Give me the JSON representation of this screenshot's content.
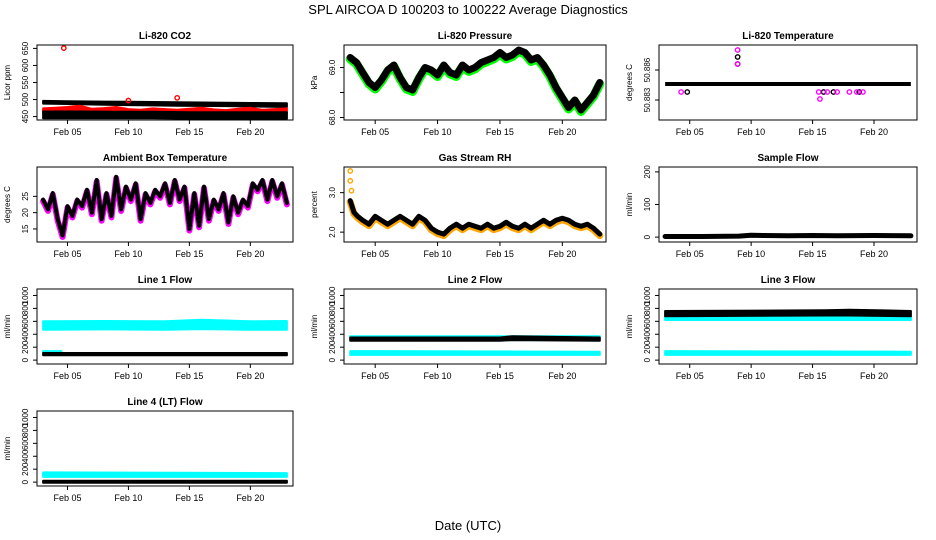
{
  "page": {
    "title": "SPL   AIRCOA D   100203 to 100222   Average Diagnostics",
    "footer": "Date (UTC)"
  },
  "colors": {
    "black": "#000000",
    "red": "#ff0000",
    "magenta": "#ff00ff",
    "green": "#00ff00",
    "orange": "#ffa500",
    "cyan": "#00ffff"
  },
  "chart_data": [
    {
      "id": "co2",
      "type": "scatter",
      "title": "Li-820 CO2",
      "ylabel": "Licor ppm",
      "xlim": [
        2.5,
        23.5
      ],
      "ylim": [
        440,
        660
      ],
      "xticks": [
        5,
        10,
        15,
        20
      ],
      "xticklabels": [
        "Feb 05",
        "Feb 10",
        "Feb 15",
        "Feb 20"
      ],
      "yticks": [
        450,
        500,
        550,
        600,
        650
      ],
      "yticklabels": [
        "450",
        "500",
        "550",
        "600",
        "650"
      ],
      "series": [
        {
          "name": "upper",
          "color": "#000000",
          "style": "band",
          "x": [
            3,
            5,
            8,
            11,
            14,
            17,
            20,
            23
          ],
          "lo": [
            488,
            487,
            485,
            483,
            482,
            481,
            480,
            478
          ],
          "hi": [
            496,
            495,
            494,
            493,
            492,
            491,
            490,
            489
          ]
        },
        {
          "name": "red",
          "color": "#ff0000",
          "style": "band",
          "x": [
            3,
            4,
            5,
            6,
            7,
            8,
            9,
            10,
            11,
            12,
            13,
            14,
            15,
            16,
            17,
            18,
            19,
            20,
            21,
            22,
            23
          ],
          "lo": [
            462,
            462,
            461,
            461,
            460,
            460,
            460,
            460,
            460,
            459,
            459,
            459,
            459,
            459,
            458,
            458,
            458,
            458,
            458,
            458,
            458
          ],
          "hi": [
            474,
            476,
            478,
            482,
            473,
            475,
            478,
            472,
            470,
            474,
            472,
            470,
            473,
            476,
            471,
            469,
            473,
            476,
            470,
            472,
            474
          ]
        },
        {
          "name": "lower",
          "color": "#000000",
          "style": "band",
          "x": [
            3,
            6,
            9,
            12,
            15,
            18,
            21,
            23
          ],
          "lo": [
            445,
            445,
            445,
            445,
            444,
            444,
            444,
            444
          ],
          "hi": [
            465,
            465,
            464,
            464,
            463,
            463,
            463,
            463
          ]
        },
        {
          "name": "outliers",
          "color": "#ff0000",
          "style": "points",
          "x": [
            4.7,
            10.0,
            14.0
          ],
          "y": [
            651,
            497,
            505
          ]
        }
      ]
    },
    {
      "id": "pressure",
      "type": "line",
      "title": "Li-820 Pressure",
      "ylabel": "kPa",
      "xlim": [
        2.5,
        23.5
      ],
      "ylim": [
        67.95,
        69.45
      ],
      "xticks": [
        5,
        10,
        15,
        20
      ],
      "xticklabels": [
        "Feb 05",
        "Feb 10",
        "Feb 15",
        "Feb 20"
      ],
      "yticks": [
        68.0,
        68.5,
        69.0
      ],
      "yticklabels": [
        "68.0",
        "",
        "69.0"
      ],
      "series": [
        {
          "name": "pressure",
          "color": "#000000",
          "halo": "#00ff00",
          "width": 7,
          "x": [
            3,
            3.5,
            4,
            4.5,
            5,
            5.5,
            6,
            6.5,
            7,
            7.5,
            8,
            8.5,
            9,
            9.5,
            10,
            10.5,
            11,
            11.5,
            12,
            12.5,
            13,
            13.5,
            14,
            14.5,
            15,
            15.5,
            16,
            16.5,
            17,
            17.5,
            18,
            18.5,
            19,
            19.5,
            20,
            20.5,
            21,
            21.5,
            22,
            22.5,
            23
          ],
          "y": [
            69.2,
            69.1,
            68.9,
            68.7,
            68.6,
            68.75,
            68.95,
            69.05,
            68.8,
            68.6,
            68.55,
            68.8,
            69.0,
            68.95,
            68.85,
            69.05,
            68.9,
            68.85,
            69.05,
            68.95,
            69.0,
            69.1,
            69.15,
            69.2,
            69.3,
            69.2,
            69.25,
            69.35,
            69.3,
            69.15,
            69.2,
            69.05,
            68.85,
            68.6,
            68.4,
            68.2,
            68.35,
            68.15,
            68.3,
            68.45,
            68.7
          ]
        }
      ]
    },
    {
      "id": "temperature",
      "type": "scatter",
      "title": "Li-820 Temperature",
      "ylabel": "degrees C",
      "xlim": [
        2.5,
        23.5
      ],
      "ylim": [
        50.881,
        50.8885
      ],
      "xticks": [
        5,
        10,
        15,
        20
      ],
      "xticklabels": [
        "Feb 05",
        "Feb 10",
        "Feb 15",
        "Feb 20"
      ],
      "yticks": [
        50.883,
        50.886
      ],
      "yticklabels": [
        "50.883",
        "50.886"
      ],
      "series": [
        {
          "name": "main",
          "color": "#000000",
          "style": "hline",
          "x": [
            3,
            23
          ],
          "y": [
            50.8846,
            50.8846
          ]
        },
        {
          "name": "low-black",
          "color": "#000000",
          "style": "points",
          "x": [
            4.8,
            15.9,
            16.7,
            18.8
          ],
          "y": [
            50.8838,
            50.8838,
            50.8838,
            50.8838
          ]
        },
        {
          "name": "high-black",
          "color": "#000000",
          "style": "points",
          "x": [
            8.9,
            8.9
          ],
          "y": [
            50.8873,
            50.8866
          ]
        },
        {
          "name": "magenta",
          "color": "#ff00ff",
          "style": "points",
          "x": [
            4.3,
            8.9,
            8.9,
            15.5,
            15.6,
            16.2,
            17.0,
            18.0,
            18.6,
            19.1
          ],
          "y": [
            50.8838,
            50.888,
            50.8866,
            50.8838,
            50.8831,
            50.8838,
            50.8838,
            50.8838,
            50.8838,
            50.8838
          ]
        }
      ]
    },
    {
      "id": "ambient",
      "type": "line",
      "title": "Ambient Box Temperature",
      "ylabel": "degrees C",
      "xlim": [
        2.5,
        23.5
      ],
      "ylim": [
        11,
        34
      ],
      "xticks": [
        5,
        10,
        15,
        20
      ],
      "xticklabels": [
        "Feb 05",
        "Feb 10",
        "Feb 15",
        "Feb 20"
      ],
      "yticks": [
        15,
        20,
        25
      ],
      "yticklabels": [
        "15",
        "20",
        "25"
      ],
      "series": [
        {
          "name": "ambient",
          "color": "#000000",
          "halo": "#ff00ff",
          "width": 4,
          "x": [
            3,
            3.4,
            3.8,
            4.2,
            4.6,
            5.0,
            5.4,
            5.8,
            6.2,
            6.6,
            7.0,
            7.4,
            7.8,
            8.2,
            8.6,
            9.0,
            9.4,
            9.8,
            10.2,
            10.6,
            11.0,
            11.4,
            11.8,
            12.2,
            12.6,
            13.0,
            13.4,
            13.8,
            14.2,
            14.6,
            15.0,
            15.4,
            15.8,
            16.2,
            16.6,
            17.0,
            17.4,
            17.8,
            18.2,
            18.6,
            19.0,
            19.4,
            19.8,
            20.2,
            20.6,
            21.0,
            21.4,
            21.8,
            22.2,
            22.6,
            23.0
          ],
          "y": [
            24,
            21,
            26,
            18,
            13,
            22,
            19,
            24,
            22,
            27,
            20,
            30,
            18,
            26,
            19,
            31,
            21,
            28,
            24,
            29,
            18,
            26,
            23,
            27,
            25,
            29,
            23,
            30,
            24,
            28,
            15,
            26,
            16,
            28,
            18,
            24,
            21,
            26,
            17,
            25,
            20,
            24,
            22,
            29,
            27,
            30,
            24,
            30,
            25,
            29,
            23
          ]
        }
      ]
    },
    {
      "id": "rh",
      "type": "line",
      "title": "Gas Stream RH",
      "ylabel": "percent",
      "xlim": [
        2.5,
        23.5
      ],
      "ylim": [
        1.75,
        3.65
      ],
      "xticks": [
        5,
        10,
        15,
        20
      ],
      "xticklabels": [
        "Feb 05",
        "Feb 10",
        "Feb 15",
        "Feb 20"
      ],
      "yticks": [
        2.0,
        2.5,
        3.0
      ],
      "yticklabels": [
        "2.0",
        "",
        "3.0"
      ],
      "series": [
        {
          "name": "rh",
          "color": "#000000",
          "halo": "#ffa500",
          "width": 5,
          "x": [
            3,
            3.3,
            3.6,
            4.0,
            4.5,
            5.0,
            5.5,
            6.0,
            6.5,
            7.0,
            7.5,
            8.0,
            8.5,
            9.0,
            9.5,
            10.0,
            10.5,
            11.0,
            11.5,
            12.0,
            12.5,
            13.0,
            13.5,
            14.0,
            14.5,
            15.0,
            15.5,
            16.0,
            16.5,
            17.0,
            17.5,
            18.0,
            18.5,
            19.0,
            19.5,
            20.0,
            20.5,
            21.0,
            21.5,
            22.0,
            22.5,
            23.0
          ],
          "y": [
            2.8,
            2.5,
            2.4,
            2.3,
            2.2,
            2.4,
            2.3,
            2.2,
            2.3,
            2.4,
            2.3,
            2.2,
            2.4,
            2.3,
            2.1,
            2.0,
            1.95,
            2.1,
            2.2,
            2.1,
            2.2,
            2.15,
            2.1,
            2.2,
            2.1,
            2.15,
            2.25,
            2.15,
            2.1,
            2.2,
            2.1,
            2.2,
            2.3,
            2.2,
            2.3,
            2.35,
            2.3,
            2.2,
            2.15,
            2.2,
            2.1,
            1.95
          ]
        },
        {
          "name": "spikes",
          "color": "#ffa500",
          "style": "points",
          "x": [
            3.0,
            3.0,
            3.1
          ],
          "y": [
            3.55,
            3.3,
            3.05
          ]
        }
      ]
    },
    {
      "id": "sample",
      "type": "line",
      "title": "Sample Flow",
      "ylabel": "ml/min",
      "xlim": [
        2.5,
        23.5
      ],
      "ylim": [
        -15,
        215
      ],
      "xticks": [
        5,
        10,
        15,
        20
      ],
      "xticklabels": [
        "Feb 05",
        "Feb 10",
        "Feb 15",
        "Feb 20"
      ],
      "yticks": [
        0,
        100,
        200
      ],
      "yticklabels": [
        "0",
        "100",
        "200"
      ],
      "series": [
        {
          "name": "sample",
          "color": "#000000",
          "width": 5,
          "x": [
            3,
            6,
            9,
            10,
            11,
            13,
            15,
            17,
            20,
            23
          ],
          "y": [
            2,
            2,
            3,
            6,
            5,
            4,
            5,
            4,
            5,
            4
          ]
        }
      ]
    },
    {
      "id": "line1",
      "type": "scatter",
      "title": "Line 1 Flow",
      "ylabel": "ml/min",
      "xlim": [
        2.5,
        23.5
      ],
      "ylim": [
        -60,
        1100
      ],
      "xticks": [
        5,
        10,
        15,
        20
      ],
      "xticklabels": [
        "Feb 05",
        "Feb 10",
        "Feb 15",
        "Feb 20"
      ],
      "yticks": [
        0,
        200,
        400,
        600,
        800,
        1000
      ],
      "yticklabels": [
        "0",
        "200",
        "400",
        "600",
        "800",
        "1000"
      ],
      "series": [
        {
          "name": "cyan-band",
          "color": "#00ffff",
          "style": "band",
          "x": [
            3,
            8,
            13,
            16,
            20,
            23
          ],
          "lo": [
            470,
            475,
            470,
            480,
            470,
            470
          ],
          "hi": [
            600,
            605,
            600,
            625,
            600,
            605
          ]
        },
        {
          "name": "cyan-low",
          "color": "#00ffff",
          "style": "band",
          "x": [
            3,
            4.5
          ],
          "lo": [
            110,
            110
          ],
          "hi": [
            140,
            140
          ]
        },
        {
          "name": "black",
          "color": "#000000",
          "style": "band",
          "x": [
            3,
            23
          ],
          "lo": [
            75,
            75
          ],
          "hi": [
            110,
            110
          ]
        }
      ]
    },
    {
      "id": "line2",
      "type": "scatter",
      "title": "Line 2 Flow",
      "ylabel": "ml/min",
      "xlim": [
        2.5,
        23.5
      ],
      "ylim": [
        -60,
        1100
      ],
      "xticks": [
        5,
        10,
        15,
        20
      ],
      "xticklabels": [
        "Feb 05",
        "Feb 10",
        "Feb 15",
        "Feb 20"
      ],
      "yticks": [
        0,
        200,
        400,
        600,
        800,
        1000
      ],
      "yticklabels": [
        "0",
        "200",
        "400",
        "600",
        "800",
        "1000"
      ],
      "series": [
        {
          "name": "cyan-low",
          "color": "#00ffff",
          "style": "band",
          "x": [
            3,
            23
          ],
          "lo": [
            80,
            80
          ],
          "hi": [
            140,
            130
          ]
        },
        {
          "name": "cyan-mid",
          "color": "#00ffff",
          "style": "band",
          "x": [
            3,
            23
          ],
          "lo": [
            310,
            310
          ],
          "hi": [
            370,
            370
          ]
        },
        {
          "name": "black",
          "color": "#000000",
          "style": "band",
          "x": [
            3,
            15,
            16,
            23
          ],
          "lo": [
            300,
            300,
            310,
            300
          ],
          "hi": [
            350,
            350,
            370,
            350
          ]
        }
      ]
    },
    {
      "id": "line3",
      "type": "scatter",
      "title": "Line 3 Flow",
      "ylabel": "ml/min",
      "xlim": [
        2.5,
        23.5
      ],
      "ylim": [
        -60,
        1100
      ],
      "xticks": [
        5,
        10,
        15,
        20
      ],
      "xticklabels": [
        "Feb 05",
        "Feb 10",
        "Feb 15",
        "Feb 20"
      ],
      "yticks": [
        0,
        200,
        400,
        600,
        800,
        1000
      ],
      "yticklabels": [
        "0",
        "200",
        "400",
        "600",
        "800",
        "1000"
      ],
      "series": [
        {
          "name": "cyan-low",
          "color": "#00ffff",
          "style": "band",
          "x": [
            3,
            23
          ],
          "lo": [
            80,
            80
          ],
          "hi": [
            140,
            130
          ]
        },
        {
          "name": "cyan-high",
          "color": "#00ffff",
          "style": "band",
          "x": [
            3,
            23
          ],
          "lo": [
            620,
            620
          ],
          "hi": [
            680,
            680
          ]
        },
        {
          "name": "black",
          "color": "#000000",
          "style": "band",
          "x": [
            3,
            16,
            18,
            23
          ],
          "lo": [
            680,
            690,
            690,
            680
          ],
          "hi": [
            760,
            770,
            780,
            760
          ]
        }
      ]
    },
    {
      "id": "line4",
      "type": "scatter",
      "title": "Line 4 (LT) Flow",
      "ylabel": "ml/min",
      "xlim": [
        2.5,
        23.5
      ],
      "ylim": [
        -60,
        1100
      ],
      "xticks": [
        5,
        10,
        15,
        20
      ],
      "xticklabels": [
        "Feb 05",
        "Feb 10",
        "Feb 15",
        "Feb 20"
      ],
      "yticks": [
        0,
        200,
        400,
        600,
        800,
        1000
      ],
      "yticklabels": [
        "0",
        "200",
        "400",
        "600",
        "800",
        "1000"
      ],
      "series": [
        {
          "name": "cyan",
          "color": "#00ffff",
          "style": "band",
          "x": [
            3,
            23
          ],
          "lo": [
            80,
            80
          ],
          "hi": [
            150,
            140
          ]
        },
        {
          "name": "black",
          "color": "#000000",
          "style": "band",
          "x": [
            3,
            23
          ],
          "lo": [
            -10,
            -10
          ],
          "hi": [
            20,
            20
          ]
        }
      ]
    }
  ]
}
